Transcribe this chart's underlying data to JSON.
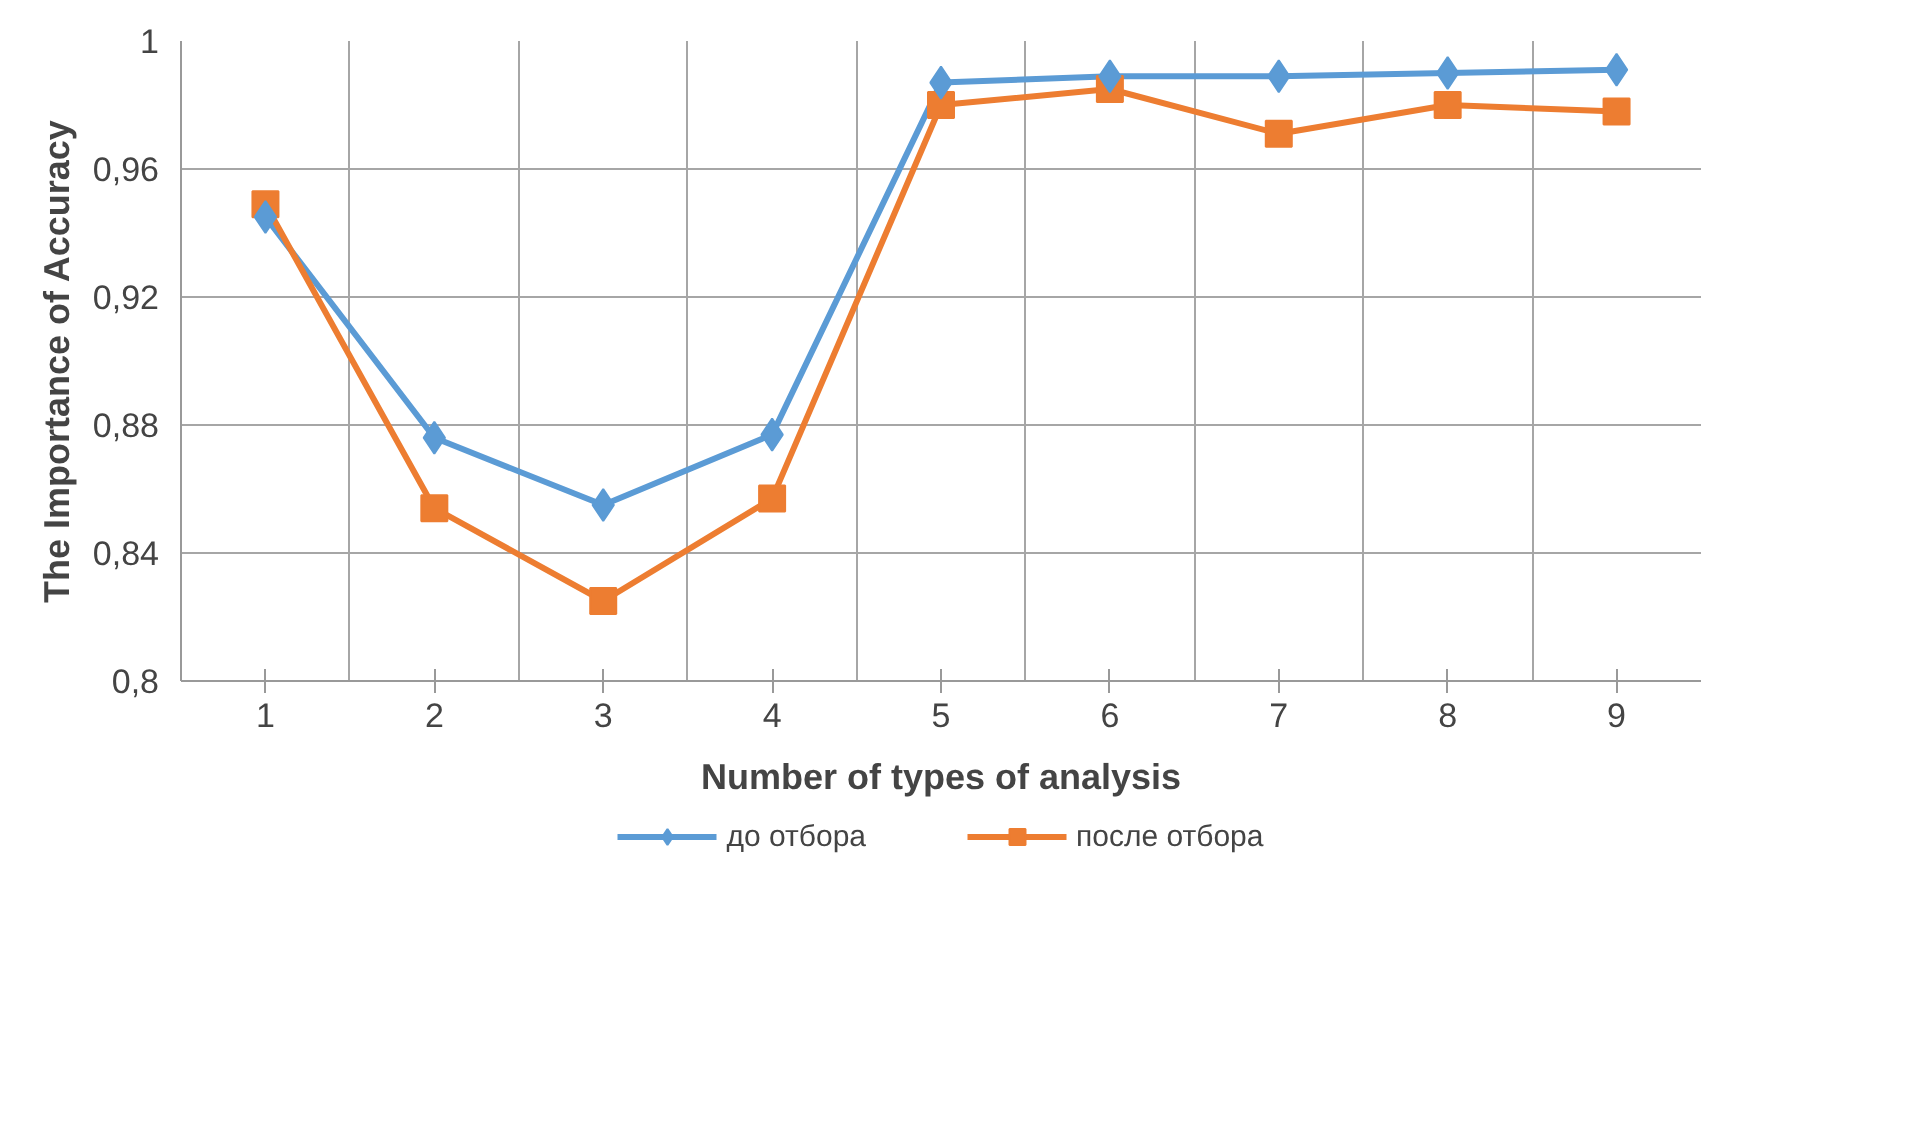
{
  "chart_data": {
    "type": "line",
    "xlabel": "Number of types of analysis",
    "ylabel": "The Importance of Accuracy",
    "categories": [
      "1",
      "2",
      "3",
      "4",
      "5",
      "6",
      "7",
      "8",
      "9"
    ],
    "series": [
      {
        "name": "до отбора",
        "color": "#5b9bd5",
        "marker": "diamond",
        "values": [
          0.945,
          0.876,
          0.855,
          0.877,
          0.987,
          0.989,
          0.989,
          0.99,
          0.991
        ]
      },
      {
        "name": "после отбора",
        "color": "#ed7d31",
        "marker": "square",
        "values": [
          0.949,
          0.854,
          0.825,
          0.857,
          0.98,
          0.985,
          0.971,
          0.98,
          0.978
        ]
      }
    ],
    "ylim": [
      0.8,
      1.0
    ],
    "yticks": [
      {
        "value": 0.8,
        "label": "0,8"
      },
      {
        "value": 0.84,
        "label": "0,84"
      },
      {
        "value": 0.88,
        "label": "0,88"
      },
      {
        "value": 0.92,
        "label": "0,92"
      },
      {
        "value": 0.96,
        "label": "0,96"
      },
      {
        "value": 1,
        "label": "1"
      }
    ],
    "grid": true,
    "legend": "bottom",
    "line_style": "solid"
  }
}
